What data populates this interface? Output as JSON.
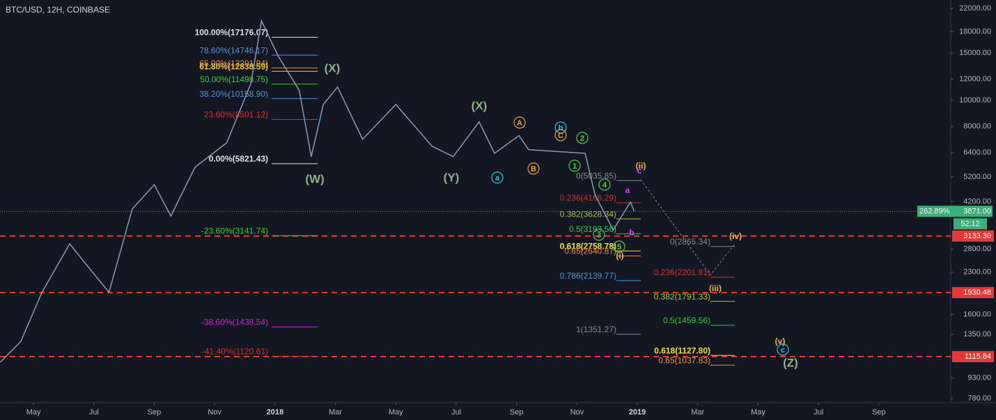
{
  "chart_data": {
    "type": "line",
    "title": "BTC/USD, 12H, COINBASE",
    "log_scale": true,
    "xlim": [
      2.89,
      34.38
    ],
    "ylim": [
      753,
      23630
    ],
    "xticks": [
      {
        "value": 4,
        "label": "May"
      },
      {
        "value": 6,
        "label": "Jul"
      },
      {
        "value": 8,
        "label": "Sep"
      },
      {
        "value": 10,
        "label": "Nov"
      },
      {
        "value": 12,
        "label": "2018"
      },
      {
        "value": 14,
        "label": "Mar"
      },
      {
        "value": 16,
        "label": "May"
      },
      {
        "value": 18,
        "label": "Jul"
      },
      {
        "value": 20,
        "label": "Sep"
      },
      {
        "value": 22,
        "label": "Nov"
      },
      {
        "value": 24,
        "label": "2019"
      },
      {
        "value": 26,
        "label": "Mar"
      },
      {
        "value": 28,
        "label": "May"
      },
      {
        "value": 30,
        "label": "Jul"
      },
      {
        "value": 32,
        "label": "Sep"
      }
    ],
    "yticks": [
      {
        "value": 22000,
        "label": "22000.00"
      },
      {
        "value": 18000,
        "label": "18000.00"
      },
      {
        "value": 15000,
        "label": "15000.00"
      },
      {
        "value": 12000,
        "label": "12000.00"
      },
      {
        "value": 10000,
        "label": "10000.00"
      },
      {
        "value": 8000,
        "label": "8000.00"
      },
      {
        "value": 6400,
        "label": "6400.00"
      },
      {
        "value": 5200,
        "label": "5200.00"
      },
      {
        "value": 4200,
        "label": "4200.00"
      },
      {
        "value": 2800,
        "label": "2800.00"
      },
      {
        "value": 2300,
        "label": "2300.00"
      },
      {
        "value": 1600,
        "label": "1600.00"
      },
      {
        "value": 1350,
        "label": "1350.00"
      },
      {
        "value": 930,
        "label": "930.00"
      },
      {
        "value": 780,
        "label": "780.00"
      }
    ],
    "x": [
      2.9,
      3.58,
      4.28,
      5.2,
      5.66,
      6.5,
      7.27,
      8.0,
      8.55,
      9.35,
      10.4,
      11.2,
      11.55,
      12.1,
      12.8,
      13.2,
      13.6,
      14.07,
      14.9,
      16.0,
      17.2,
      17.9,
      18.76,
      19.27,
      20.08,
      20.4,
      22.27,
      22.6,
      23.2,
      23.77,
      23.9
    ],
    "series": [
      {
        "color": "#8a9bb0",
        "values": [
          1064,
          1272,
          1936,
          2930,
          2525,
          1936,
          3950,
          4860,
          3720,
          5650,
          6960,
          11550,
          19760,
          14670,
          10900,
          6180,
          9660,
          11220,
          7170,
          9660,
          6760,
          6180,
          8320,
          6360,
          7400,
          6560,
          6360,
          4450,
          3300,
          4190,
          3871
        ]
      }
    ],
    "price_line": {
      "value": 3871,
      "label": "3871.00",
      "change": "262.89%",
      "countdown": "52:12"
    },
    "hlines": [
      {
        "value": 3133.3,
        "label": "3133.30"
      },
      {
        "value": 1930.48,
        "label": "1930.48"
      },
      {
        "value": 1115.84,
        "label": "1115.84"
      }
    ],
    "fibs": [
      [
        {
          "label": "100.00%(17176.07)",
          "value": 17176.07,
          "color": "#e0e0e0"
        },
        {
          "label": "78.60%(14746.17)",
          "value": 14746.17,
          "color": "#5b8fd6"
        },
        {
          "label": "65.00%(13201.94)",
          "value": 13201.94,
          "color": "#e69138"
        },
        {
          "label": "61.80%(12838.59)",
          "value": 12838.59,
          "color": "#f1c232"
        },
        {
          "label": "50.00%(11498.75)",
          "value": 11498.75,
          "color": "#2ecc40"
        },
        {
          "label": "38.20%(10158.90)",
          "value": 10158.9,
          "color": "#5b8fd6"
        },
        {
          "label": "23.60%(8501.12)",
          "value": 8501.12,
          "color": "#d03030"
        },
        {
          "label": "0.00%(5821.43)",
          "value": 5821.43,
          "color": "#e0e0e0"
        },
        {
          "label": "-23.60%(3141.74)",
          "value": 3141.74,
          "color": "#2ecc40"
        },
        {
          "label": "-38.60%(1438.54)",
          "value": 1438.54,
          "color": "#d020d0"
        },
        {
          "label": "-41.40%(1120.61)",
          "value": 1120.61,
          "color": "#d03030"
        }
      ],
      [
        {
          "label": "0(5035.85)",
          "value": 5035.85,
          "color": "#888888"
        },
        {
          "label": "0.236(4166.29)",
          "value": 4166.29,
          "color": "#d03030"
        },
        {
          "label": "0.382(3628.34)",
          "value": 3628.34,
          "color": "#a5c83c"
        },
        {
          "label": "0.5(3193.56)",
          "value": 3193.56,
          "color": "#2ecc40"
        },
        {
          "label": "0.618(2758.78)",
          "value": 2758.78,
          "color": "#f1e232"
        },
        {
          "label": "0.65(2640.87)",
          "value": 2640.87,
          "color": "#e69138"
        },
        {
          "label": "0.786(2139.77)",
          "value": 2139.77,
          "color": "#3d9ad6"
        },
        {
          "label": "1(1351.27)",
          "value": 1351.27,
          "color": "#888888"
        }
      ],
      [
        {
          "label": "0(2865.34)",
          "value": 2865.34,
          "color": "#888888"
        },
        {
          "label": "0.236(2201.81)",
          "value": 2201.81,
          "color": "#d03030"
        },
        {
          "label": "0.382(1791.33)",
          "value": 1791.33,
          "color": "#a5c83c"
        },
        {
          "label": "0.5(1459.56)",
          "value": 1459.56,
          "color": "#2ecc40"
        },
        {
          "label": "0.618(1127.80)",
          "value": 1127.8,
          "color": "#f1e232"
        },
        {
          "label": "0.65(1037.83)",
          "value": 1037.83,
          "color": "#e69138"
        }
      ]
    ],
    "waves": [
      "(W)",
      "(X)",
      "(X)",
      "(Y)",
      "(Z)",
      "a",
      "b",
      "c",
      "A",
      "B",
      "C",
      "1",
      "2",
      "3",
      "4",
      "5",
      "(i)",
      "(ii)",
      "(iii)",
      "(iv)",
      "(v)",
      "a",
      "b",
      "c"
    ]
  }
}
